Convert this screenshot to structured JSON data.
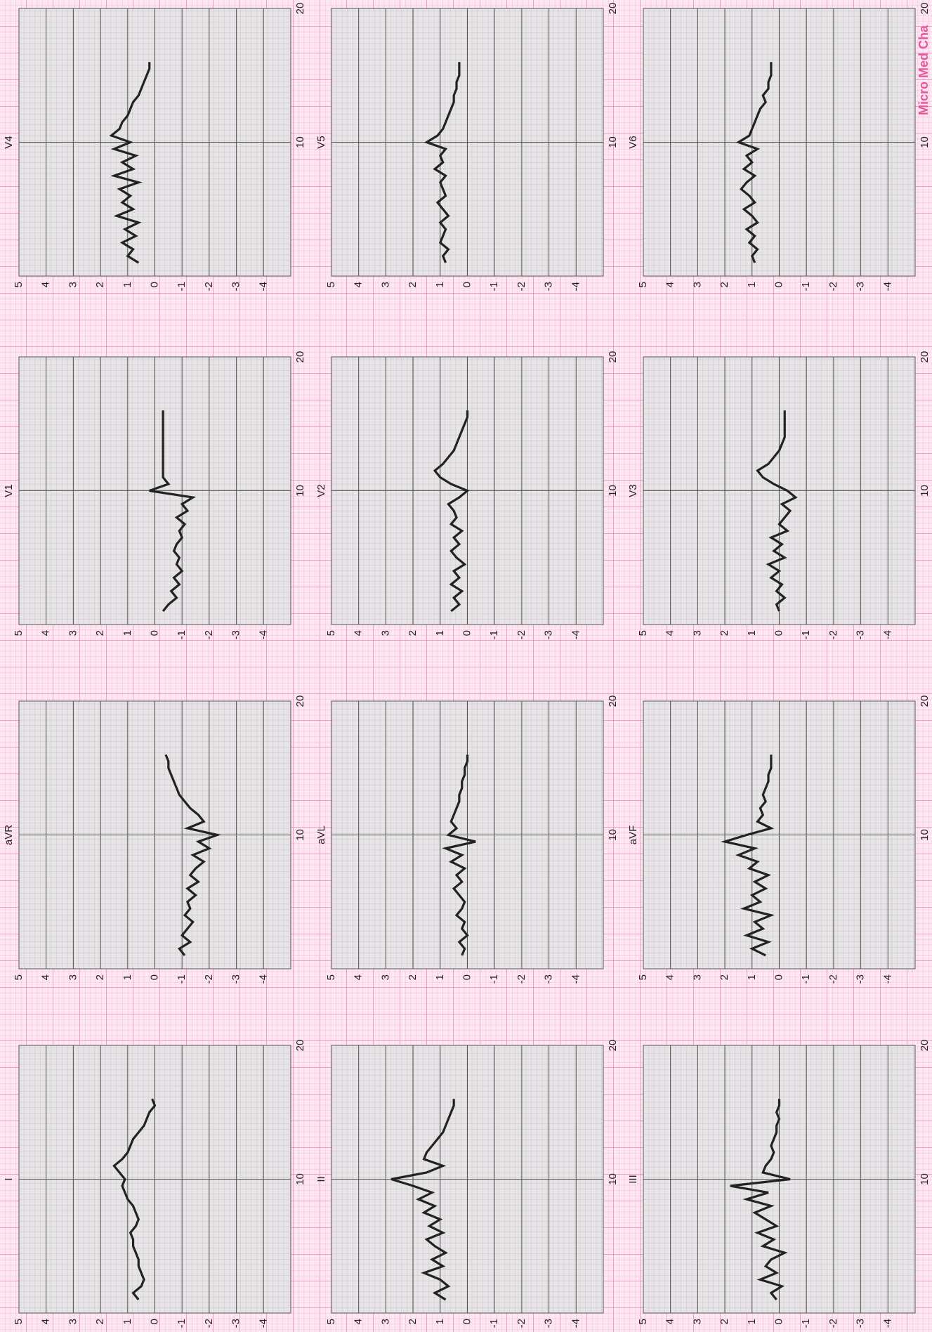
{
  "chart_data": [
    {
      "type": "line",
      "title": "I",
      "color": "#222222",
      "xlim": [
        0,
        20
      ],
      "ylim": [
        -5,
        5
      ],
      "xticks": [
        10,
        20
      ],
      "yticks": [
        5,
        4,
        3,
        2,
        1,
        0,
        -1,
        -2,
        -3,
        -4
      ],
      "grid": true,
      "x": [
        1,
        1.5,
        2,
        2.5,
        3,
        3.5,
        4,
        4.5,
        5,
        5.5,
        6,
        6.5,
        7,
        7.5,
        8,
        8.5,
        9,
        9.5,
        10,
        10.5,
        11,
        11.5,
        12,
        12.5,
        13,
        13.5,
        14,
        14.5,
        15,
        15.5,
        16
      ],
      "values": [
        0.6,
        0.8,
        0.5,
        0.4,
        0.5,
        0.6,
        0.6,
        0.7,
        0.8,
        0.8,
        0.9,
        0.7,
        0.6,
        0.7,
        0.8,
        1.0,
        1.1,
        1.2,
        1.1,
        1.3,
        1.5,
        1.2,
        1.0,
        0.9,
        0.8,
        0.6,
        0.4,
        0.3,
        0.2,
        0.0,
        0.1
      ]
    },
    {
      "type": "line",
      "title": "II",
      "color": "#222222",
      "xlim": [
        0,
        20
      ],
      "ylim": [
        -5,
        5
      ],
      "xticks": [
        10,
        20
      ],
      "yticks": [
        5,
        4,
        3,
        2,
        1,
        0,
        -1,
        -2,
        -3,
        -4
      ],
      "grid": true,
      "x": [
        1,
        1.5,
        2,
        2.5,
        3,
        3.5,
        4,
        4.5,
        5,
        5.5,
        6,
        6.5,
        7,
        7.5,
        8,
        8.5,
        9,
        9.5,
        10,
        10.5,
        11,
        11.5,
        12,
        12.5,
        13,
        13.5,
        14,
        14.5,
        15,
        15.5,
        16
      ],
      "values": [
        0.8,
        1.2,
        0.7,
        1.0,
        1.6,
        0.9,
        1.3,
        0.8,
        1.2,
        1.5,
        0.9,
        1.4,
        1.0,
        1.6,
        1.2,
        1.8,
        1.3,
        2.0,
        2.8,
        1.5,
        0.9,
        1.6,
        1.5,
        1.3,
        1.1,
        0.9,
        0.8,
        0.7,
        0.6,
        0.5,
        0.5
      ]
    },
    {
      "type": "line",
      "title": "III",
      "color": "#222222",
      "xlim": [
        0,
        20
      ],
      "ylim": [
        -5,
        5
      ],
      "xticks": [
        10,
        20
      ],
      "yticks": [
        5,
        4,
        3,
        2,
        1,
        0,
        -1,
        -2,
        -3,
        -4
      ],
      "grid": true,
      "x": [
        1,
        1.5,
        2,
        2.5,
        3,
        3.5,
        4,
        4.5,
        5,
        5.5,
        6,
        6.5,
        7,
        7.5,
        8,
        8.5,
        9,
        9.5,
        10,
        10.5,
        11,
        11.5,
        12,
        12.5,
        13,
        13.5,
        14,
        14.5,
        15,
        15.5,
        16
      ],
      "values": [
        0.1,
        0.3,
        -0.1,
        0.7,
        0.1,
        0.5,
        0.3,
        -0.2,
        0.6,
        0.2,
        0.8,
        0.1,
        0.5,
        0.9,
        0.3,
        1.2,
        0.4,
        1.8,
        -0.4,
        0.6,
        0.5,
        0.3,
        0.2,
        0.3,
        0.2,
        0.1,
        0.1,
        0.0,
        0.1,
        0.0,
        0.0
      ]
    },
    {
      "type": "line",
      "title": "aVR",
      "color": "#222222",
      "xlim": [
        0,
        20
      ],
      "ylim": [
        -5,
        5
      ],
      "xticks": [
        10,
        20
      ],
      "yticks": [
        5,
        4,
        3,
        2,
        1,
        0,
        -1,
        -2,
        -3,
        -4
      ],
      "grid": true,
      "x": [
        1,
        1.5,
        2,
        2.5,
        3,
        3.5,
        4,
        4.5,
        5,
        5.5,
        6,
        6.5,
        7,
        7.5,
        8,
        8.5,
        9,
        9.5,
        10,
        10.5,
        11,
        11.5,
        12,
        12.5,
        13,
        13.5,
        14,
        14.5,
        15,
        15.5,
        16
      ],
      "values": [
        -1.1,
        -0.9,
        -1.3,
        -1.0,
        -1.2,
        -1.4,
        -1.1,
        -1.3,
        -1.2,
        -1.5,
        -1.2,
        -1.6,
        -1.3,
        -1.5,
        -1.8,
        -1.4,
        -2.0,
        -1.6,
        -2.3,
        -1.2,
        -1.8,
        -1.6,
        -1.3,
        -1.1,
        -0.9,
        -0.8,
        -0.7,
        -0.6,
        -0.5,
        -0.5,
        -0.4
      ]
    },
    {
      "type": "line",
      "title": "aVL",
      "color": "#222222",
      "xlim": [
        0,
        20
      ],
      "ylim": [
        -5,
        5
      ],
      "xticks": [
        10,
        20
      ],
      "yticks": [
        5,
        4,
        3,
        2,
        1,
        0,
        -1,
        -2,
        -3,
        -4
      ],
      "grid": true,
      "x": [
        1,
        1.5,
        2,
        2.5,
        3,
        3.5,
        4,
        4.5,
        5,
        5.5,
        6,
        6.5,
        7,
        7.5,
        8,
        8.5,
        9,
        9.5,
        10,
        10.5,
        11,
        11.5,
        12,
        12.5,
        13,
        13.5,
        14,
        14.5,
        15,
        15.5,
        16
      ],
      "values": [
        0.2,
        0.1,
        0.3,
        0.0,
        0.2,
        0.1,
        0.4,
        0.2,
        0.1,
        0.3,
        0.5,
        0.2,
        0.4,
        0.1,
        0.6,
        0.2,
        0.8,
        -0.3,
        0.7,
        0.4,
        0.6,
        0.5,
        0.4,
        0.3,
        0.3,
        0.2,
        0.2,
        0.1,
        0.1,
        0.0,
        0.0
      ]
    },
    {
      "type": "line",
      "title": "aVF",
      "color": "#222222",
      "xlim": [
        0,
        20
      ],
      "ylim": [
        -5,
        5
      ],
      "xticks": [
        10,
        20
      ],
      "yticks": [
        5,
        4,
        3,
        2,
        1,
        0,
        -1,
        -2,
        -3,
        -4
      ],
      "grid": true,
      "x": [
        1,
        1.5,
        2,
        2.5,
        3,
        3.5,
        4,
        4.5,
        5,
        5.5,
        6,
        6.5,
        7,
        7.5,
        8,
        8.5,
        9,
        9.5,
        10,
        10.5,
        11,
        11.5,
        12,
        12.5,
        13,
        13.5,
        14,
        14.5,
        15,
        15.5,
        16
      ],
      "values": [
        0.5,
        1.0,
        0.4,
        1.2,
        0.6,
        0.9,
        0.3,
        1.3,
        0.7,
        1.0,
        0.5,
        0.9,
        0.4,
        1.1,
        0.8,
        1.5,
        0.9,
        2.0,
        1.2,
        0.3,
        0.8,
        0.6,
        0.7,
        0.5,
        0.6,
        0.5,
        0.4,
        0.4,
        0.3,
        0.3,
        0.3
      ]
    },
    {
      "type": "line",
      "title": "V1",
      "color": "#222222",
      "xlim": [
        0,
        20
      ],
      "ylim": [
        -5,
        5
      ],
      "xticks": [
        10,
        20
      ],
      "yticks": [
        5,
        4,
        3,
        2,
        1,
        0,
        -1,
        -2,
        -3,
        -4
      ],
      "grid": true,
      "x": [
        1,
        1.5,
        2,
        2.5,
        3,
        3.5,
        4,
        4.5,
        5,
        5.5,
        6,
        6.5,
        7,
        7.5,
        8,
        8.5,
        9,
        9.5,
        10,
        10.5,
        11,
        11.5,
        12,
        12.5,
        13,
        13.5,
        14,
        14.5,
        15,
        15.5,
        16
      ],
      "values": [
        -0.3,
        -0.5,
        -0.8,
        -0.6,
        -0.9,
        -0.7,
        -1.0,
        -0.8,
        -0.9,
        -0.7,
        -0.8,
        -1.0,
        -0.9,
        -1.1,
        -0.8,
        -1.2,
        -1.0,
        -1.4,
        0.2,
        -0.5,
        -0.3,
        -0.3,
        -0.3,
        -0.3,
        -0.3,
        -0.3,
        -0.3,
        -0.3,
        -0.3,
        -0.3,
        -0.3
      ]
    },
    {
      "type": "line",
      "title": "V2",
      "color": "#222222",
      "xlim": [
        0,
        20
      ],
      "ylim": [
        -5,
        5
      ],
      "xticks": [
        10,
        20
      ],
      "yticks": [
        5,
        4,
        3,
        2,
        1,
        0,
        -1,
        -2,
        -3,
        -4
      ],
      "grid": true,
      "x": [
        1,
        1.5,
        2,
        2.5,
        3,
        3.5,
        4,
        4.5,
        5,
        5.5,
        6,
        6.5,
        7,
        7.5,
        8,
        8.5,
        9,
        9.5,
        10,
        10.5,
        11,
        11.5,
        12,
        12.5,
        13,
        13.5,
        14,
        14.5,
        15,
        15.5,
        16
      ],
      "values": [
        0.6,
        0.3,
        0.5,
        0.2,
        0.6,
        0.3,
        0.5,
        0.1,
        0.4,
        0.6,
        0.3,
        0.5,
        0.2,
        0.6,
        0.4,
        0.5,
        0.7,
        0.3,
        0.0,
        0.6,
        1.0,
        1.2,
        0.9,
        0.7,
        0.5,
        0.4,
        0.3,
        0.2,
        0.1,
        0.0,
        0.0
      ]
    },
    {
      "type": "line",
      "title": "V3",
      "color": "#222222",
      "xlim": [
        0,
        20
      ],
      "ylim": [
        -5,
        5
      ],
      "xticks": [
        10,
        20
      ],
      "yticks": [
        5,
        4,
        3,
        2,
        1,
        0,
        -1,
        -2,
        -3,
        -4
      ],
      "grid": true,
      "x": [
        1,
        1.5,
        2,
        2.5,
        3,
        3.5,
        4,
        4.5,
        5,
        5.5,
        6,
        6.5,
        7,
        7.5,
        8,
        8.5,
        9,
        9.5,
        10,
        10.5,
        11,
        11.5,
        12,
        12.5,
        13,
        13.5,
        14,
        14.5,
        15,
        15.5,
        16
      ],
      "values": [
        0.0,
        0.1,
        -0.2,
        0.1,
        -0.1,
        0.3,
        0.0,
        0.4,
        -0.2,
        0.2,
        -0.1,
        0.3,
        -0.3,
        0.0,
        -0.2,
        -0.4,
        -0.1,
        -0.6,
        -0.3,
        0.2,
        0.6,
        0.8,
        0.4,
        0.2,
        0.0,
        -0.1,
        -0.2,
        -0.2,
        -0.2,
        -0.2,
        -0.2
      ]
    },
    {
      "type": "line",
      "title": "V4",
      "color": "#222222",
      "xlim": [
        0,
        20
      ],
      "ylim": [
        -5,
        5
      ],
      "xticks": [
        10,
        20
      ],
      "yticks": [
        5,
        4,
        3,
        2,
        1,
        0,
        -1,
        -2,
        -3,
        -4
      ],
      "grid": true,
      "x": [
        1,
        1.5,
        2,
        2.5,
        3,
        3.5,
        4,
        4.5,
        5,
        5.5,
        6,
        6.5,
        7,
        7.5,
        8,
        8.5,
        9,
        9.5,
        10,
        10.5,
        11,
        11.5,
        12,
        12.5,
        13,
        13.5,
        14,
        14.5,
        15,
        15.5,
        16
      ],
      "values": [
        0.6,
        1.0,
        0.8,
        1.2,
        0.7,
        1.1,
        0.6,
        1.4,
        0.8,
        1.2,
        0.9,
        1.3,
        0.6,
        1.5,
        0.8,
        1.2,
        0.7,
        1.5,
        0.9,
        1.6,
        1.3,
        1.2,
        1.0,
        0.9,
        0.8,
        0.6,
        0.5,
        0.4,
        0.3,
        0.2,
        0.2
      ]
    },
    {
      "type": "line",
      "title": "V5",
      "color": "#222222",
      "xlim": [
        0,
        20
      ],
      "ylim": [
        -5,
        5
      ],
      "xticks": [
        10,
        20
      ],
      "yticks": [
        5,
        4,
        3,
        2,
        1,
        0,
        -1,
        -2,
        -3,
        -4
      ],
      "grid": true,
      "x": [
        1,
        1.5,
        2,
        2.5,
        3,
        3.5,
        4,
        4.5,
        5,
        5.5,
        6,
        6.5,
        7,
        7.5,
        8,
        8.5,
        9,
        9.5,
        10,
        10.5,
        11,
        11.5,
        12,
        12.5,
        13,
        13.5,
        14,
        14.5,
        15,
        15.5,
        16
      ],
      "values": [
        0.8,
        0.9,
        0.7,
        1.0,
        0.9,
        0.8,
        1.0,
        0.7,
        0.9,
        1.1,
        0.8,
        0.9,
        1.0,
        0.8,
        1.2,
        0.9,
        1.0,
        0.8,
        1.5,
        1.1,
        0.9,
        0.8,
        0.7,
        0.6,
        0.5,
        0.5,
        0.4,
        0.4,
        0.3,
        0.3,
        0.3
      ]
    },
    {
      "type": "line",
      "title": "V6",
      "color": "#222222",
      "xlim": [
        0,
        20
      ],
      "ylim": [
        -5,
        5
      ],
      "xticks": [
        10,
        20
      ],
      "yticks": [
        5,
        4,
        3,
        2,
        1,
        0,
        -1,
        -2,
        -3,
        -4
      ],
      "grid": true,
      "x": [
        1,
        1.5,
        2,
        2.5,
        3,
        3.5,
        4,
        4.5,
        5,
        5.5,
        6,
        6.5,
        7,
        7.5,
        8,
        8.5,
        9,
        9.5,
        10,
        10.5,
        11,
        11.5,
        12,
        12.5,
        13,
        13.5,
        14,
        14.5,
        15,
        15.5,
        16
      ],
      "values": [
        0.9,
        1.0,
        0.8,
        1.1,
        0.9,
        1.2,
        0.8,
        1.0,
        1.3,
        0.9,
        1.1,
        1.4,
        1.2,
        0.9,
        1.3,
        1.0,
        1.2,
        0.8,
        1.5,
        1.1,
        1.0,
        0.9,
        0.8,
        0.7,
        0.5,
        0.6,
        0.4,
        0.4,
        0.3,
        0.3,
        0.3
      ]
    }
  ],
  "brand": "Micro Med Cha"
}
